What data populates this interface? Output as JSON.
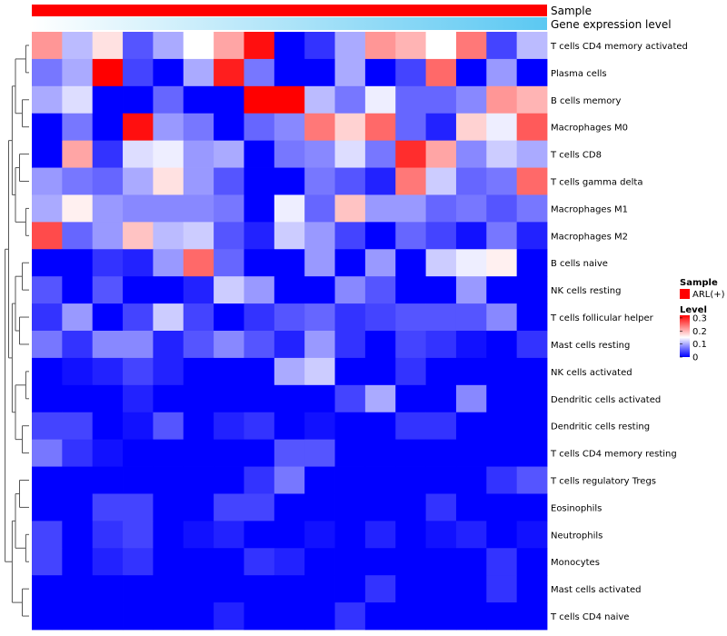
{
  "chart_data": {
    "type": "heatmap",
    "title": "",
    "annotation_tracks": [
      {
        "name": "Sample",
        "fill": "#ff0000"
      },
      {
        "name": "Gene expression level",
        "gradient": [
          "#ffffff",
          "#5bc8f2"
        ]
      }
    ],
    "rows": [
      "T cells CD4 memory activated",
      "Plasma cells",
      "B cells memory",
      "Macrophages M0",
      "T cells CD8",
      "T cells gamma delta",
      "Macrophages M1",
      "Macrophages M2",
      "B cells naive",
      "NK cells resting",
      "T cells follicular helper",
      "Mast cells resting",
      "NK cells activated",
      "Dendritic cells activated",
      "Dendritic cells resting",
      "T cells CD4 memory resting",
      "T cells regulatory  Tregs",
      "Eosinophils",
      "Neutrophils",
      "Monocytes",
      "Mast cells activated",
      "T cells CD4 naive"
    ],
    "n_columns": 17,
    "values": [
      [
        0.22,
        0.11,
        0.17,
        0.05,
        0.1,
        0.15,
        0.21,
        0.31,
        0.0,
        0.03,
        0.1,
        0.22,
        0.2,
        0.15,
        0.24,
        0.04,
        0.11
      ],
      [
        0.07,
        0.1,
        0.32,
        0.04,
        0.0,
        0.1,
        0.3,
        0.07,
        0.0,
        0.0,
        0.1,
        0.0,
        0.04,
        0.25,
        0.0,
        0.09,
        0.0
      ],
      [
        0.1,
        0.13,
        0.0,
        0.0,
        0.06,
        0.0,
        0.0,
        0.32,
        0.32,
        0.11,
        0.07,
        0.14,
        0.06,
        0.06,
        0.08,
        0.22,
        0.2
      ],
      [
        0.0,
        0.07,
        0.0,
        0.31,
        0.09,
        0.07,
        0.0,
        0.06,
        0.08,
        0.24,
        0.18,
        0.25,
        0.06,
        0.02,
        0.18,
        0.14,
        0.26
      ],
      [
        0.0,
        0.21,
        0.03,
        0.13,
        0.14,
        0.09,
        0.1,
        0.0,
        0.07,
        0.08,
        0.13,
        0.07,
        0.29,
        0.21,
        0.08,
        0.12,
        0.1
      ],
      [
        0.09,
        0.07,
        0.06,
        0.1,
        0.17,
        0.09,
        0.05,
        0.0,
        0.0,
        0.07,
        0.05,
        0.02,
        0.24,
        0.12,
        0.06,
        0.07,
        0.25
      ],
      [
        0.1,
        0.16,
        0.09,
        0.08,
        0.08,
        0.08,
        0.07,
        0.0,
        0.14,
        0.06,
        0.19,
        0.09,
        0.09,
        0.06,
        0.07,
        0.05,
        0.07
      ],
      [
        0.27,
        0.06,
        0.09,
        0.19,
        0.11,
        0.12,
        0.05,
        0.02,
        0.12,
        0.09,
        0.04,
        0.0,
        0.06,
        0.04,
        0.01,
        0.07,
        0.02
      ],
      [
        0.0,
        0.0,
        0.03,
        0.02,
        0.09,
        0.25,
        0.06,
        0.0,
        0.0,
        0.09,
        0.0,
        0.09,
        0.0,
        0.12,
        0.14,
        0.16,
        0.0
      ],
      [
        0.05,
        0.0,
        0.05,
        0.0,
        0.0,
        0.02,
        0.12,
        0.09,
        0.0,
        0.0,
        0.08,
        0.05,
        0.0,
        0.0,
        0.09,
        0.0,
        0.0
      ],
      [
        0.03,
        0.09,
        0.0,
        0.04,
        0.12,
        0.04,
        0.0,
        0.03,
        0.05,
        0.06,
        0.03,
        0.04,
        0.05,
        0.05,
        0.05,
        0.08,
        0.0
      ],
      [
        0.07,
        0.03,
        0.08,
        0.08,
        0.02,
        0.05,
        0.08,
        0.05,
        0.02,
        0.09,
        0.03,
        0.0,
        0.04,
        0.03,
        0.01,
        0.0,
        0.03
      ],
      [
        0.0,
        0.01,
        0.02,
        0.04,
        0.02,
        0.0,
        0.0,
        0.0,
        0.1,
        0.12,
        0.0,
        0.0,
        0.03,
        0.0,
        0.0,
        0.0,
        0.0
      ],
      [
        0.0,
        0.0,
        0.0,
        0.02,
        0.0,
        0.0,
        0.0,
        0.0,
        0.0,
        0.0,
        0.04,
        0.1,
        0.0,
        0.0,
        0.08,
        0.0,
        0.0
      ],
      [
        0.04,
        0.04,
        0.0,
        0.01,
        0.05,
        0.0,
        0.02,
        0.03,
        0.0,
        0.01,
        0.0,
        0.0,
        0.03,
        0.03,
        0.0,
        0.0,
        0.0
      ],
      [
        0.07,
        0.03,
        0.01,
        0.0,
        0.0,
        0.0,
        0.0,
        0.0,
        0.05,
        0.05,
        0.0,
        0.0,
        0.0,
        0.0,
        0.0,
        0.0,
        0.0
      ],
      [
        0.0,
        0.0,
        0.0,
        0.0,
        0.0,
        0.0,
        0.0,
        0.03,
        0.07,
        0.0,
        0.0,
        0.0,
        0.0,
        0.0,
        0.0,
        0.03,
        0.05
      ],
      [
        0.0,
        0.0,
        0.04,
        0.04,
        0.0,
        0.0,
        0.04,
        0.04,
        0.0,
        0.0,
        0.0,
        0.0,
        0.0,
        0.03,
        0.0,
        0.0,
        0.0
      ],
      [
        0.04,
        0.0,
        0.03,
        0.04,
        0.0,
        0.01,
        0.02,
        0.0,
        0.0,
        0.01,
        0.0,
        0.02,
        0.0,
        0.01,
        0.02,
        0.0,
        0.01
      ],
      [
        0.04,
        0.0,
        0.02,
        0.03,
        0.0,
        0.0,
        0.0,
        0.03,
        0.02,
        0.0,
        0.0,
        0.0,
        0.0,
        0.0,
        0.0,
        0.03,
        0.0
      ],
      [
        0.0,
        0.0,
        0.0,
        0.0,
        0.0,
        0.0,
        0.0,
        0.0,
        0.0,
        0.0,
        0.0,
        0.03,
        0.0,
        0.0,
        0.0,
        0.03,
        0.0
      ],
      [
        0.0,
        0.0,
        0.0,
        0.0,
        0.0,
        0.0,
        0.02,
        0.0,
        0.0,
        0.0,
        0.03,
        0.0,
        0.0,
        0.0,
        0.0,
        0.0,
        0.0
      ]
    ],
    "color_scale": {
      "min": 0,
      "mid": 0.15,
      "max": 0.32,
      "low": "#0000ff",
      "midColor": "#ffffff",
      "high": "#ff0000"
    },
    "dendrogram_heights": [
      0,
      0.12,
      0.25,
      0.35,
      0.5,
      0.62,
      0.75,
      0.88,
      1.0
    ],
    "legend": {
      "sample_title": "Sample",
      "sample_label": "ARL(+)",
      "sample_color": "#ff0000",
      "level_title": "Level",
      "ticks": [
        {
          "label": "0.3",
          "value": 0.3
        },
        {
          "label": "0.2",
          "value": 0.2
        },
        {
          "label": "0.1",
          "value": 0.1
        },
        {
          "label": "0",
          "value": 0
        }
      ]
    }
  }
}
